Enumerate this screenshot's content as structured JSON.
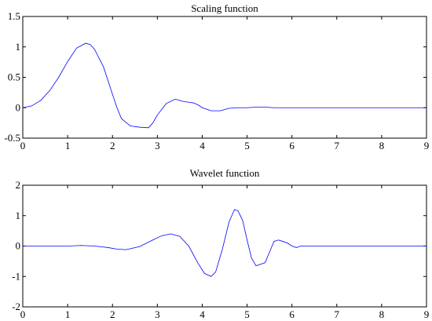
{
  "chart_data": [
    {
      "type": "line",
      "title": "Scaling function",
      "xlim": [
        0,
        9
      ],
      "ylim": [
        -0.5,
        1.5
      ],
      "xticks": [
        "0",
        "1",
        "2",
        "3",
        "4",
        "5",
        "6",
        "7",
        "8",
        "9"
      ],
      "yticks": [
        "-0.5",
        "0",
        "0.5",
        "1",
        "1.5"
      ],
      "line_color": "#0000ff",
      "series": [
        {
          "x": [
            0,
            0.2,
            0.4,
            0.6,
            0.8,
            1.0,
            1.2,
            1.4,
            1.5,
            1.6,
            1.8,
            2.0,
            2.1,
            2.2,
            2.4,
            2.6,
            2.8,
            2.9,
            3.0,
            3.2,
            3.4,
            3.5,
            3.6,
            3.7,
            3.8,
            3.9,
            4.0,
            4.2,
            4.4,
            4.6,
            4.8,
            5.0,
            5.2,
            5.4,
            5.6,
            6.0,
            7.0,
            8.0,
            9.0
          ],
          "y": [
            0,
            0.03,
            0.12,
            0.28,
            0.5,
            0.76,
            0.98,
            1.06,
            1.04,
            0.96,
            0.67,
            0.22,
            0.0,
            -0.18,
            -0.3,
            -0.32,
            -0.33,
            -0.25,
            -0.12,
            0.07,
            0.14,
            0.12,
            0.1,
            0.09,
            0.08,
            0.05,
            0.0,
            -0.05,
            -0.05,
            -0.01,
            0.0,
            0.0,
            0.01,
            0.01,
            0.0,
            0.0,
            0.0,
            0.0,
            0.0
          ]
        }
      ]
    },
    {
      "type": "line",
      "title": "Wavelet function",
      "xlim": [
        0,
        9
      ],
      "ylim": [
        -2,
        2
      ],
      "xticks": [
        "0",
        "1",
        "2",
        "3",
        "4",
        "5",
        "6",
        "7",
        "8",
        "9"
      ],
      "yticks": [
        "-2",
        "-1",
        "0",
        "1",
        "2"
      ],
      "line_color": "#0000ff",
      "series": [
        {
          "x": [
            0,
            0.5,
            1.0,
            1.3,
            1.6,
            1.9,
            2.1,
            2.3,
            2.6,
            2.9,
            3.1,
            3.3,
            3.5,
            3.7,
            3.9,
            4.05,
            4.2,
            4.3,
            4.45,
            4.6,
            4.72,
            4.8,
            4.9,
            5.0,
            5.1,
            5.2,
            5.3,
            5.4,
            5.5,
            5.6,
            5.7,
            5.8,
            5.9,
            6.0,
            6.1,
            6.2,
            6.4,
            6.6,
            7.0,
            8.0,
            9.0
          ],
          "y": [
            0,
            0,
            0,
            0.02,
            0,
            -0.05,
            -0.1,
            -0.12,
            -0.02,
            0.2,
            0.34,
            0.4,
            0.32,
            0.0,
            -0.55,
            -0.9,
            -1.0,
            -0.85,
            -0.1,
            0.8,
            1.2,
            1.15,
            0.85,
            0.2,
            -0.4,
            -0.65,
            -0.6,
            -0.55,
            -0.2,
            0.15,
            0.2,
            0.15,
            0.1,
            0.0,
            -0.05,
            0.0,
            0.0,
            0.0,
            0.0,
            0.0,
            0.0
          ]
        }
      ]
    }
  ]
}
